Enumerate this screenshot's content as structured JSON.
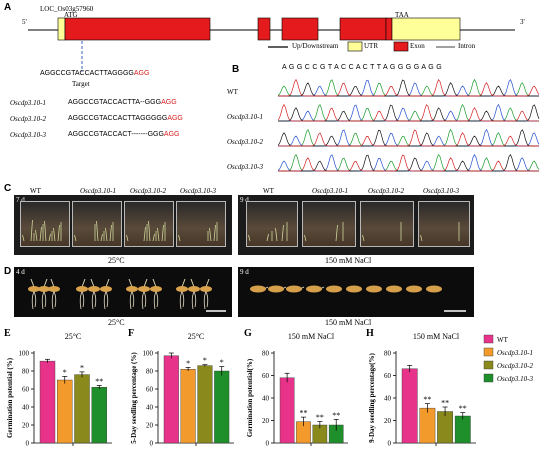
{
  "panelA": {
    "label": "A",
    "end5": "5'",
    "end3": "3'",
    "locus": "LOC_Os03g57960",
    "atg": "ATG",
    "taa": "TAA",
    "legend": {
      "up": "Up/Downstream",
      "utr": "UTR",
      "exon": "Exon",
      "intron": "Intron"
    },
    "colors": {
      "utr": "#ffff99",
      "exon": "#e41a1c",
      "line": "#000000",
      "target": "#3b5fc0"
    },
    "target_seq": {
      "black": "AGGCCGTACCACTTAGGGG",
      "red": "AGG"
    },
    "target_label": "Target",
    "alleles": [
      {
        "name": "Oscdp3.10-1",
        "black": "AGGCCGTACCACTTA--GGG",
        "red": "AGG"
      },
      {
        "name": "Oscdp3.10-2",
        "black": "AGGCCGTACCACTTAGGGGG",
        "red": "AGG"
      },
      {
        "name": "Oscdp3.10-3",
        "black": "AGGCCGTACCACT-------GGG",
        "red": "AGG"
      }
    ]
  },
  "panelB": {
    "label": "B",
    "bases": "A G G C C G T A C C A C T T A G G G G A G G",
    "rows": [
      "WT",
      "Oscdp3.10-1",
      "Oscdp3.10-2",
      "Oscdp3.10-3"
    ]
  },
  "panelC": {
    "label": "C",
    "left_day": "7 d",
    "right_day": "9 d",
    "genotypes": [
      "WT",
      "Oscdp3.10-1",
      "Oscdp3.10-2",
      "Oscdp3.10-3"
    ],
    "left_condition": "25°C",
    "right_condition": "150 mM NaCl"
  },
  "panelD": {
    "label": "D",
    "left_day": "4 d",
    "right_day": "9 d",
    "left_condition": "25°C",
    "right_condition": "150 mM NaCl"
  },
  "legend": {
    "items": [
      {
        "name": "WT",
        "color": "#e8338a"
      },
      {
        "name": "Oscdp3.10-1",
        "color": "#f39a2c"
      },
      {
        "name": "Oscdp3.10-2",
        "color": "#8a8a1c"
      },
      {
        "name": "Oscdp3.10-3",
        "color": "#1e8f2b"
      }
    ]
  },
  "chart_data": [
    {
      "panel": "E",
      "type": "bar",
      "title": "25°C",
      "ylabel": "Germination potential (%)",
      "ylim": [
        0,
        100
      ],
      "yticks": [
        0,
        20,
        40,
        60,
        80,
        100
      ],
      "categories": [
        "WT",
        "Oscdp3.10-1",
        "Oscdp3.10-2",
        "Oscdp3.10-3"
      ],
      "values": [
        91,
        70,
        76,
        62
      ],
      "errors": [
        2,
        4,
        3,
        2
      ],
      "sig": [
        "",
        "*",
        "*",
        "**"
      ]
    },
    {
      "panel": "F",
      "type": "bar",
      "title": "25°C",
      "ylabel": "5-Day seedling percentage (%)",
      "ylim": [
        0,
        100
      ],
      "yticks": [
        0,
        20,
        40,
        60,
        80,
        100
      ],
      "categories": [
        "WT",
        "Oscdp3.10-1",
        "Oscdp3.10-2",
        "Oscdp3.10-3"
      ],
      "values": [
        97,
        82,
        86,
        80
      ],
      "errors": [
        3,
        2,
        1,
        5
      ],
      "sig": [
        "",
        "*",
        "*",
        "*"
      ]
    },
    {
      "panel": "G",
      "type": "bar",
      "title": "150 mM NaCl",
      "ylabel": "Germination potential(%)",
      "ylim": [
        0,
        80
      ],
      "yticks": [
        0,
        20,
        40,
        60,
        80
      ],
      "categories": [
        "WT",
        "Oscdp3.10-1",
        "Oscdp3.10-2",
        "Oscdp3.10-3"
      ],
      "values": [
        58,
        19,
        16,
        16
      ],
      "errors": [
        4,
        4,
        3,
        5
      ],
      "sig": [
        "",
        "**",
        "**",
        "**"
      ]
    },
    {
      "panel": "H",
      "type": "bar",
      "title": "150 mM NaCl",
      "ylabel": "9-Day seedling percentage(%)",
      "ylim": [
        0,
        80
      ],
      "yticks": [
        0,
        20,
        40,
        60,
        80
      ],
      "categories": [
        "WT",
        "Oscdp3.10-1",
        "Oscdp3.10-2",
        "Oscdp3.10-3"
      ],
      "values": [
        66,
        31,
        28,
        24
      ],
      "errors": [
        3,
        4,
        4,
        3
      ],
      "sig": [
        "",
        "**",
        "**",
        "**"
      ]
    }
  ]
}
